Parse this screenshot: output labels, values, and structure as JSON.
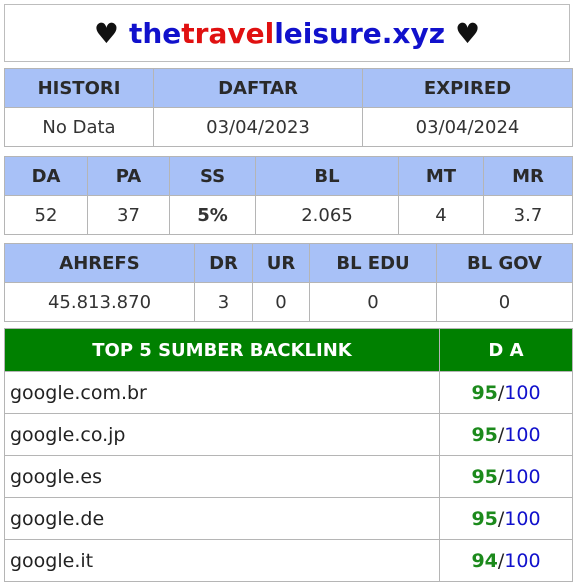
{
  "title": {
    "heart_left": "♥",
    "domain_part1": "the",
    "domain_part2": "travel",
    "domain_part3": "leisure.xyz",
    "heart_right": "♥"
  },
  "table1": {
    "headers": [
      "HISTORI",
      "DAFTAR",
      "EXPIRED"
    ],
    "values": [
      "No Data",
      "03/04/2023",
      "03/04/2024"
    ]
  },
  "table2": {
    "headers": [
      "DA",
      "PA",
      "SS",
      "BL",
      "MT",
      "MR"
    ],
    "values": [
      "52",
      "37",
      "5%",
      "2.065",
      "4",
      "3.7"
    ]
  },
  "table3": {
    "headers": [
      "AHREFS",
      "DR",
      "UR",
      "BL EDU",
      "BL GOV"
    ],
    "values": [
      "45.813.870",
      "3",
      "0",
      "0",
      "0"
    ]
  },
  "backlinks": {
    "header_source": "TOP 5 SUMBER BACKLINK",
    "header_da": "D A",
    "separator": "/",
    "rows": [
      {
        "source": "google.com.br",
        "da": "95",
        "max": "100"
      },
      {
        "source": "google.co.jp",
        "da": "95",
        "max": "100"
      },
      {
        "source": "google.es",
        "da": "95",
        "max": "100"
      },
      {
        "source": "google.de",
        "da": "95",
        "max": "100"
      },
      {
        "source": "google.it",
        "da": "94",
        "max": "100"
      }
    ]
  },
  "colors": {
    "header_bg": "#a8c1f7",
    "backlink_header_bg": "#008000",
    "score_green": "#1c8a1c",
    "max_blue": "#1111cc",
    "title_red": "#e01010"
  }
}
